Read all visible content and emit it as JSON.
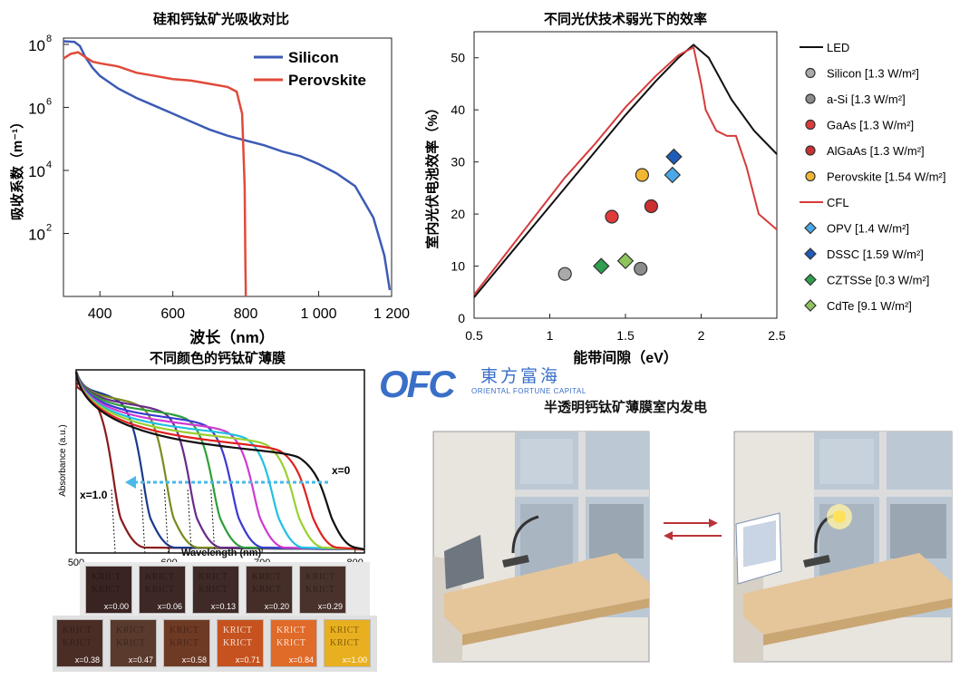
{
  "chart_data": [
    {
      "type": "line",
      "title": "硅和钙钛矿光吸收对比",
      "xlabel": "波长（nm）",
      "ylabel": "吸收系数（m⁻¹）",
      "xlim": [
        300,
        1200
      ],
      "ylim_log10": [
        0,
        8.2
      ],
      "y_scale": "log",
      "x_ticks": [
        400,
        600,
        800,
        1000,
        1200
      ],
      "x_tick_labels": [
        "400",
        "600",
        "800",
        "1 000",
        "1 200"
      ],
      "y_ticks": [
        2,
        4,
        6,
        8
      ],
      "y_tick_labels": [
        "10",
        "10",
        "10",
        "10"
      ],
      "y_tick_exponents": [
        "2",
        "4",
        "6",
        "8"
      ],
      "legend_position": "top-right",
      "series": [
        {
          "name": "Silicon",
          "color": "#3d5bb5",
          "x": [
            300,
            330,
            345,
            360,
            380,
            400,
            450,
            500,
            550,
            600,
            650,
            700,
            750,
            800,
            850,
            900,
            950,
            1000,
            1050,
            1100,
            1150,
            1180,
            1195
          ],
          "y_log10": [
            8.1,
            8.08,
            7.95,
            7.6,
            7.25,
            7.0,
            6.6,
            6.3,
            6.05,
            5.8,
            5.55,
            5.3,
            5.1,
            4.95,
            4.8,
            4.6,
            4.45,
            4.2,
            3.9,
            3.5,
            2.5,
            1.3,
            0.2
          ]
        },
        {
          "name": "Perovskite",
          "color": "#e04a3a",
          "x": [
            300,
            320,
            340,
            360,
            380,
            400,
            450,
            500,
            550,
            600,
            650,
            700,
            750,
            775,
            790,
            797,
            799,
            800,
            800
          ],
          "y_log10": [
            7.55,
            7.7,
            7.75,
            7.6,
            7.45,
            7.4,
            7.3,
            7.1,
            7.0,
            6.9,
            6.85,
            6.75,
            6.65,
            6.5,
            5.8,
            3.5,
            1.0,
            0.3,
            0
          ]
        }
      ]
    },
    {
      "type": "line",
      "title": "不同光伏技术弱光下的效率",
      "xlabel": "能带间隙（eV）",
      "ylabel": "室内光伏电池效率（%）",
      "xlim": [
        0.5,
        2.5
      ],
      "ylim": [
        0,
        55
      ],
      "x_ticks": [
        0.5,
        1,
        1.5,
        2,
        2.5
      ],
      "x_tick_labels": [
        "0.5",
        "1",
        "1.5",
        "2",
        "2.5"
      ],
      "y_ticks": [
        0,
        10,
        20,
        30,
        40,
        50
      ],
      "y_tick_labels": [
        "0",
        "10",
        "20",
        "30",
        "40",
        "50"
      ],
      "legend_position": "right",
      "series": [
        {
          "name": "LED",
          "color": "#111111",
          "x": [
            0.5,
            0.7,
            0.9,
            1.1,
            1.3,
            1.5,
            1.7,
            1.85,
            1.95,
            2.05,
            2.2,
            2.35,
            2.5
          ],
          "y": [
            4,
            11,
            18,
            25,
            32,
            39,
            45.5,
            50,
            52.5,
            50,
            42,
            36,
            31.5
          ]
        },
        {
          "name": "CFL",
          "color": "#d63b3b",
          "x": [
            0.5,
            0.7,
            0.9,
            1.1,
            1.3,
            1.5,
            1.7,
            1.85,
            1.95,
            2.0,
            2.03,
            2.1,
            2.17,
            2.23,
            2.3,
            2.38,
            2.5
          ],
          "y": [
            4.5,
            12,
            19.5,
            27,
            33.5,
            40.5,
            46.5,
            50.5,
            52,
            45,
            40,
            36,
            35,
            35,
            29,
            20,
            17
          ]
        }
      ],
      "markers": [
        {
          "name": "Silicon",
          "cond": "1.3 W/m²",
          "shape": "circle",
          "color": "#a9a9a9",
          "x": 1.1,
          "y": 8.5
        },
        {
          "name": "a-Si",
          "cond": "1.3 W/m²",
          "shape": "circle",
          "color": "#8c8c8c",
          "x": 1.6,
          "y": 9.5
        },
        {
          "name": "GaAs",
          "cond": "1.3 W/m²",
          "shape": "circle",
          "color": "#e03b3b",
          "x": 1.41,
          "y": 19.5
        },
        {
          "name": "AlGaAs",
          "cond": "1.3 W/m²",
          "shape": "circle",
          "color": "#cc3030",
          "x": 1.67,
          "y": 21.5
        },
        {
          "name": "Perovskite",
          "cond": "1.54 W/m²",
          "shape": "circle",
          "color": "#f2b630",
          "x": 1.61,
          "y": 27.5
        },
        {
          "name": "OPV",
          "cond": "1.4 W/m²",
          "shape": "diamond",
          "color": "#4aa8e8",
          "x": 1.81,
          "y": 27.5
        },
        {
          "name": "DSSC",
          "cond": "1.59 W/m²",
          "shape": "diamond",
          "color": "#1f5bb8",
          "x": 1.82,
          "y": 31
        },
        {
          "name": "CZTSSe",
          "cond": "0.3 W/m²",
          "shape": "diamond",
          "color": "#2f9e4f",
          "x": 1.34,
          "y": 10
        },
        {
          "name": "CdTe",
          "cond": "9.1 W/m²",
          "shape": "diamond",
          "color": "#8fc45a",
          "x": 1.5,
          "y": 11
        }
      ]
    },
    {
      "type": "line",
      "title": "不同颜色的钙钛矿薄膜",
      "xlabel": "Wavelength  (nm)",
      "ylabel": "Absorbance  (a.u.)",
      "xlim": [
        500,
        810
      ],
      "x_ticks": [
        500,
        600,
        700,
        800
      ],
      "x_tick_labels": [
        "500",
        "600",
        "700",
        "800"
      ],
      "annotations": [
        "x=0",
        "x=1.0"
      ],
      "series": [
        {
          "color": "#8b1a1a",
          "edge": 548
        },
        {
          "color": "#1a3a8b",
          "edge": 580
        },
        {
          "color": "#7a8a20",
          "edge": 605
        },
        {
          "color": "#6a2a8b",
          "edge": 630
        },
        {
          "color": "#2e9e3a",
          "edge": 655
        },
        {
          "color": "#3a3ad0",
          "edge": 675
        },
        {
          "color": "#d03ad0",
          "edge": 698
        },
        {
          "color": "#20c0e0",
          "edge": 718
        },
        {
          "color": "#9ad030",
          "edge": 740
        },
        {
          "color": "#e02020",
          "edge": 755
        },
        {
          "color": "#111111",
          "edge": 775
        }
      ]
    }
  ],
  "logo": {
    "letters": "OFC",
    "cn": "東方富海",
    "en": "ORIENTAL FORTUNE CAPITAL"
  },
  "room_title": "半透明钙钛矿薄膜室内发电",
  "films_row1": [
    "x=0.00",
    "x=0.06",
    "x=0.13",
    "x=0.20",
    "x=0.29"
  ],
  "films_row2": [
    "x=0.38",
    "x=0.47",
    "x=0.58",
    "x=0.71",
    "x=0.84",
    "x=1.00"
  ],
  "film_text": "KRICT",
  "colors": {
    "films_row1": [
      "#3a2422",
      "#3d2826",
      "#3f2a27",
      "#452d28",
      "#4a322c"
    ],
    "films_row2": [
      "#4a2e26",
      "#5a3a2c",
      "#6e3a24",
      "#c5521f",
      "#e06a28",
      "#e8b020"
    ]
  }
}
